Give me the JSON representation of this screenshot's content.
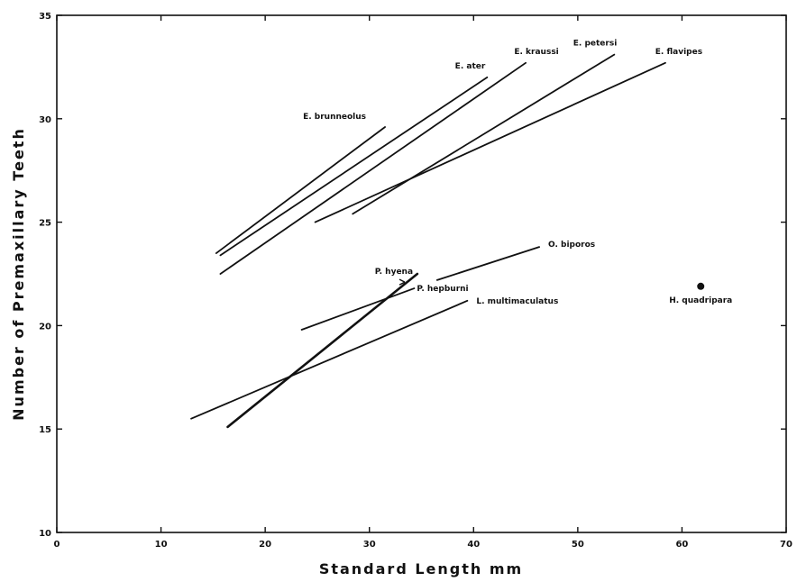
{
  "chart_data": {
    "type": "line",
    "xlabel": "Standard  Length  mm",
    "ylabel": "Number  of  Premaxillary  Teeth",
    "xlim": [
      0,
      70
    ],
    "ylim": [
      10,
      35
    ],
    "xticks": [
      0,
      10,
      20,
      30,
      40,
      50,
      60,
      70
    ],
    "yticks": [
      10,
      15,
      20,
      25,
      30,
      35
    ],
    "grid": false,
    "series": [
      {
        "name": "E. brunneolus",
        "x": [
          15.3,
          31.5
        ],
        "y": [
          23.5,
          29.6
        ]
      },
      {
        "name": "E. ater",
        "x": [
          15.7,
          41.3
        ],
        "y": [
          23.4,
          32.0
        ]
      },
      {
        "name": "E. kraussi",
        "x": [
          15.7,
          45.0
        ],
        "y": [
          22.5,
          32.7
        ]
      },
      {
        "name": "E. petersi",
        "x": [
          28.4,
          53.5
        ],
        "y": [
          25.4,
          33.1
        ]
      },
      {
        "name": "E. flavipes",
        "x": [
          24.8,
          58.4
        ],
        "y": [
          25.0,
          32.7
        ]
      },
      {
        "name": "O. biporos",
        "x": [
          36.5,
          46.3
        ],
        "y": [
          22.2,
          23.8
        ]
      },
      {
        "name": "P. hyena",
        "x": [
          16.4,
          34.6
        ],
        "y": [
          15.1,
          22.5
        ]
      },
      {
        "name": "P. hepburni",
        "x": [
          23.5,
          34.3
        ],
        "y": [
          19.8,
          21.8
        ]
      },
      {
        "name": "L. multimaculatus",
        "x": [
          12.9,
          39.4
        ],
        "y": [
          15.5,
          21.2
        ]
      },
      {
        "name": "H. quadripara",
        "x": [
          61.8
        ],
        "y": [
          21.9
        ]
      }
    ]
  }
}
